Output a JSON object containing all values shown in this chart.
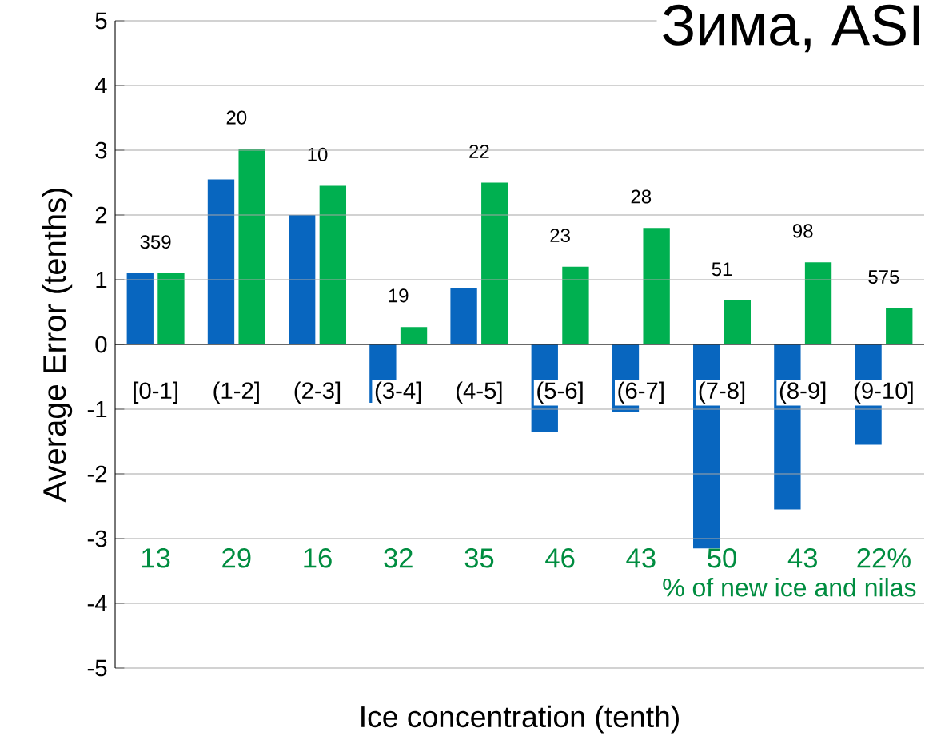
{
  "chart_data": {
    "type": "bar",
    "title": "Зима, ASI",
    "xlabel": "Ice concentration (tenth)",
    "ylabel": "Average Error (tenths)",
    "categories": [
      "[0-1]",
      "(1-2]",
      "(2-3]",
      "(3-4]",
      "(4-5]",
      "(5-6]",
      "(6-7]",
      "(7-8]",
      "(8-9]",
      "(9-10]"
    ],
    "series": [
      {
        "color": "#0866bf",
        "values": [
          1.1,
          2.55,
          2.0,
          -0.9,
          0.87,
          -1.35,
          -1.05,
          -3.15,
          -2.55,
          -1.55
        ]
      },
      {
        "color": "#00b050",
        "values": [
          1.1,
          3.02,
          2.45,
          0.27,
          2.5,
          1.2,
          1.8,
          0.68,
          1.27,
          0.56
        ]
      }
    ],
    "ylim": [
      -5,
      5
    ],
    "yticks": [
      -5,
      -4,
      -3,
      -2,
      -1,
      0,
      1,
      2,
      3,
      4,
      5
    ],
    "grid": "y",
    "annotations": [
      "359",
      "20",
      "10",
      "19",
      "22",
      "23",
      "28",
      "51",
      "98",
      "575",
      "13",
      "29",
      "16",
      "32",
      "35",
      "46",
      "43",
      "50",
      "43",
      "22%",
      "% of new ice and nilas"
    ]
  }
}
